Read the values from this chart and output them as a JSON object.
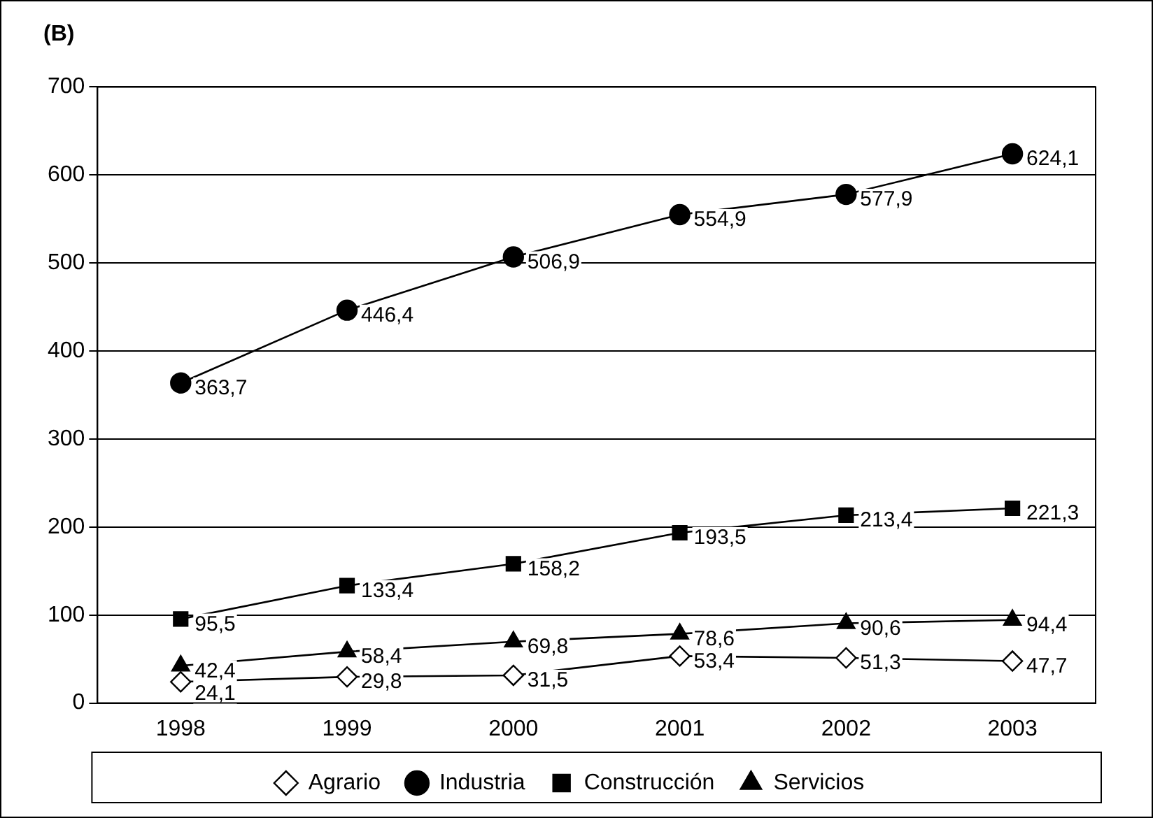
{
  "chart_data": {
    "type": "line",
    "title": "(B)",
    "categories": [
      "1998",
      "1999",
      "2000",
      "2001",
      "2002",
      "2003"
    ],
    "series": [
      {
        "name": "Agrario",
        "color": "#000000",
        "marker": "diamond",
        "values": [
          24.1,
          29.8,
          31.5,
          53.4,
          51.3,
          47.7
        ],
        "value_labels": [
          "24,1",
          "29,8",
          "31,5",
          "53,4",
          "51,3",
          "47,7"
        ]
      },
      {
        "name": "Industria",
        "color": "#000000",
        "marker": "circle",
        "values": [
          363.7,
          446.4,
          506.9,
          554.9,
          577.9,
          624.1
        ],
        "value_labels": [
          "363,7",
          "446,4",
          "506,9",
          "554,9",
          "577,9",
          "624,1"
        ]
      },
      {
        "name": "Construcción",
        "color": "#000000",
        "marker": "square",
        "values": [
          95.5,
          133.4,
          158.2,
          193.5,
          213.4,
          221.3
        ],
        "value_labels": [
          "95,5",
          "133,4",
          "158,2",
          "193,5",
          "213,4",
          "221,3"
        ]
      },
      {
        "name": "Servicios",
        "color": "#000000",
        "marker": "triangle",
        "values": [
          42.4,
          58.4,
          69.8,
          78.6,
          90.6,
          94.4
        ],
        "value_labels": [
          "42,4",
          "58,4",
          "69,8",
          "78,6",
          "90,6",
          "94,4"
        ]
      }
    ],
    "ylim": [
      0,
      700
    ],
    "yticks": [
      0,
      100,
      200,
      300,
      400,
      500,
      600,
      700
    ],
    "grid": "y",
    "legend": "bottom",
    "line_style": "solid"
  }
}
